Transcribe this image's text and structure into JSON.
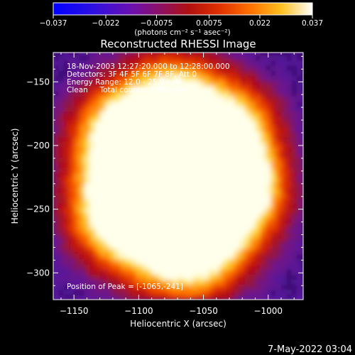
{
  "chart_data": {
    "type": "heatmap",
    "title": "Reconstructed RHESSI Image",
    "xlabel": "Heliocentric X (arcsec)",
    "ylabel": "Heliocentric Y (arcsec)",
    "xlim": [
      -1166,
      -973
    ],
    "ylim": [
      -321,
      -127
    ],
    "x_ticks": [
      -1150,
      -1100,
      -1050,
      -1000
    ],
    "y_ticks": [
      -150,
      -200,
      -250,
      -300
    ],
    "colorbar": {
      "range": [
        -0.037,
        0.037
      ],
      "ticks": [
        -0.037,
        -0.022,
        -0.0075,
        0.0075,
        0.022,
        0.037
      ],
      "tick_labels": [
        "-0.037",
        "-0.022",
        "-0.0075",
        "0.0075",
        "0.022",
        "0.037"
      ],
      "unit_label": "(photons cm⁻² s⁻¹ asec⁻²)",
      "colormap": [
        "#0000ff",
        "#5a10c8",
        "#8a1080",
        "#b01010",
        "#e03000",
        "#ff7000",
        "#ffb000",
        "#ffe060",
        "#ffffff"
      ]
    },
    "annotations": [
      "18-Nov-2003 12:27:20.000 to 12:28:00.000",
      "Detectors: 3F 4F 5F 6F 7F 8F, Att 0",
      "Energy Range: 12.0 - 25.0 keV",
      "Clean     Total counts: 1.48E+04"
    ],
    "peak_label": "Position of Peak = [-1065,-241]",
    "peak": {
      "x": -1065,
      "y": -241
    },
    "background_colors": {
      "purple": "#5a1a9a",
      "deep": "#2d0b5e"
    }
  },
  "footer": {
    "timestamp": "7-May-2022 03:04"
  }
}
